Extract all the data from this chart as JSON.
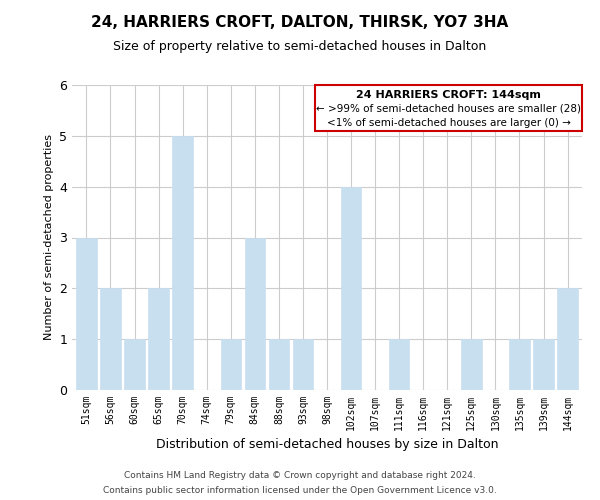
{
  "title": "24, HARRIERS CROFT, DALTON, THIRSK, YO7 3HA",
  "subtitle": "Size of property relative to semi-detached houses in Dalton",
  "xlabel": "Distribution of semi-detached houses by size in Dalton",
  "ylabel": "Number of semi-detached properties",
  "categories": [
    "51sqm",
    "56sqm",
    "60sqm",
    "65sqm",
    "70sqm",
    "74sqm",
    "79sqm",
    "84sqm",
    "88sqm",
    "93sqm",
    "98sqm",
    "102sqm",
    "107sqm",
    "111sqm",
    "116sqm",
    "121sqm",
    "125sqm",
    "130sqm",
    "135sqm",
    "139sqm",
    "144sqm"
  ],
  "values": [
    3,
    2,
    1,
    2,
    5,
    0,
    1,
    3,
    1,
    1,
    0,
    4,
    0,
    1,
    0,
    0,
    1,
    0,
    1,
    1,
    2
  ],
  "bar_color": "#c8dff0",
  "bar_edge_color": "#c8dff0",
  "highlight_bar_index": 20,
  "legend_title": "24 HARRIERS CROFT: 144sqm",
  "legend_line1": "← >99% of semi-detached houses are smaller (28)",
  "legend_line2": "<1% of semi-detached houses are larger (0) →",
  "legend_box_edge_color": "#cc0000",
  "ylim": [
    0,
    6
  ],
  "yticks": [
    0,
    1,
    2,
    3,
    4,
    5,
    6
  ],
  "footer_line1": "Contains HM Land Registry data © Crown copyright and database right 2024.",
  "footer_line2": "Contains public sector information licensed under the Open Government Licence v3.0.",
  "background_color": "#ffffff",
  "grid_color": "#cccccc"
}
